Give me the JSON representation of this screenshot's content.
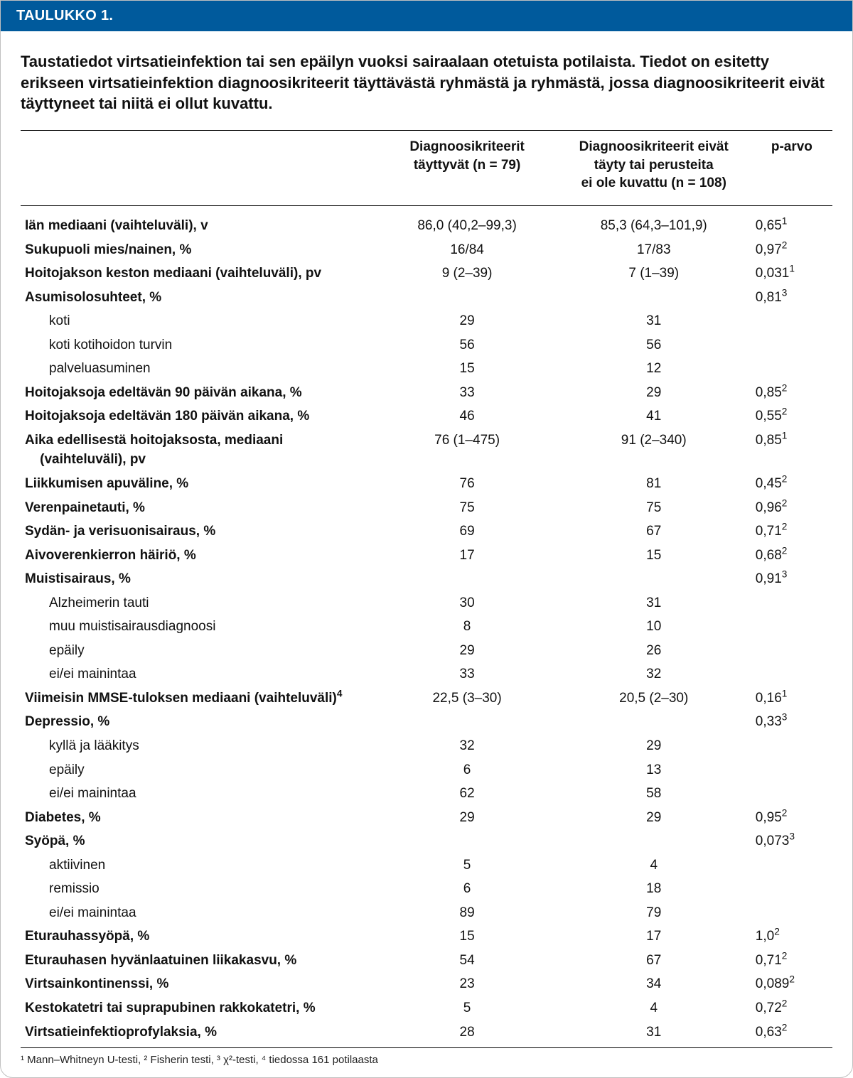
{
  "table": {
    "header_label": "TAULUKKO 1.",
    "caption": "Taustatiedot virtsatieinfektion tai sen epäilyn vuoksi sairaalaan otetuista potilaista. Tiedot on esitetty erikseen virtsatieinfektion diagnoosikriteerit täyttävästä ryhmästä ja ryhmästä, jossa diagnoosikriteerit eivät täyttyneet tai niitä ei ollut kuvattu.",
    "columns": {
      "label": "",
      "col1_l1": "Diagnoosikriteerit",
      "col1_l2": "täyttyvät (n = 79)",
      "col2_l1": "Diagnoosikriteerit eivät",
      "col2_l2": "täyty tai perusteita",
      "col2_l3": "ei ole kuvattu (n = 108)",
      "col3": "p-arvo"
    },
    "rows": [
      {
        "label": "Iän mediaani (vaihteluväli), v",
        "v1": "86,0 (40,2–99,3)",
        "v2": "85,3 (64,3–101,9)",
        "p": "0,65",
        "sup": "1",
        "bold": true
      },
      {
        "label": "Sukupuoli mies/nainen, %",
        "v1": "16/84",
        "v2": "17/83",
        "p": "0,97",
        "sup": "2",
        "bold": true
      },
      {
        "label": "Hoitojakson keston mediaani (vaihteluväli), pv",
        "v1": "9 (2–39)",
        "v2": "7 (1–39)",
        "p": "0,031",
        "sup": "1",
        "bold": true
      },
      {
        "label": "Asumisolosuhteet, %",
        "v1": "",
        "v2": "",
        "p": "0,81",
        "sup": "3",
        "bold": true
      },
      {
        "label": "koti",
        "v1": "29",
        "v2": "31",
        "p": "",
        "sup": "",
        "sub": true
      },
      {
        "label": "koti kotihoidon turvin",
        "v1": "56",
        "v2": "56",
        "p": "",
        "sup": "",
        "sub": true
      },
      {
        "label": "palveluasuminen",
        "v1": "15",
        "v2": "12",
        "p": "",
        "sup": "",
        "sub": true
      },
      {
        "label": "Hoitojaksoja edeltävän 90 päivän aikana, %",
        "v1": "33",
        "v2": "29",
        "p": "0,85",
        "sup": "2",
        "bold": true
      },
      {
        "label": "Hoitojaksoja edeltävän 180 päivän aikana, %",
        "v1": "46",
        "v2": "41",
        "p": "0,55",
        "sup": "2",
        "bold": true
      },
      {
        "label": "Aika edellisestä hoitojaksosta, mediaani",
        "label2": "(vaihteluväli), pv",
        "v1": "76 (1–475)",
        "v2": "91 (2–340)",
        "p": "0,85",
        "sup": "1",
        "bold": true,
        "two_line": true
      },
      {
        "label": "Liikkumisen apuväline, %",
        "v1": "76",
        "v2": "81",
        "p": "0,45",
        "sup": "2",
        "bold": true
      },
      {
        "label": "Verenpainetauti, %",
        "v1": "75",
        "v2": "75",
        "p": "0,96",
        "sup": "2",
        "bold": true
      },
      {
        "label": "Sydän- ja verisuonisairaus, %",
        "v1": "69",
        "v2": "67",
        "p": "0,71",
        "sup": "2",
        "bold": true
      },
      {
        "label": "Aivoverenkierron häiriö, %",
        "v1": "17",
        "v2": "15",
        "p": "0,68",
        "sup": "2",
        "bold": true
      },
      {
        "label": "Muistisairaus, %",
        "v1": "",
        "v2": "",
        "p": "0,91",
        "sup": "3",
        "bold": true
      },
      {
        "label": "Alzheimerin tauti",
        "v1": "30",
        "v2": "31",
        "p": "",
        "sup": "",
        "sub": true
      },
      {
        "label": "muu muistisairausdiagnoosi",
        "v1": "8",
        "v2": "10",
        "p": "",
        "sup": "",
        "sub": true
      },
      {
        "label": "epäily",
        "v1": "29",
        "v2": "26",
        "p": "",
        "sup": "",
        "sub": true
      },
      {
        "label": "ei/ei mainintaa",
        "v1": "33",
        "v2": "32",
        "p": "",
        "sup": "",
        "sub": true
      },
      {
        "label": "Viimeisin MMSE-tuloksen mediaani (vaihteluväli)",
        "label_sup": "4",
        "v1": "22,5 (3–30)",
        "v2": "20,5 (2–30)",
        "p": "0,16",
        "sup": "1",
        "bold": true
      },
      {
        "label": "Depressio, %",
        "v1": "",
        "v2": "",
        "p": "0,33",
        "sup": "3",
        "bold": true
      },
      {
        "label": "kyllä ja lääkitys",
        "v1": "32",
        "v2": "29",
        "p": "",
        "sup": "",
        "sub": true
      },
      {
        "label": "epäily",
        "v1": "6",
        "v2": "13",
        "p": "",
        "sup": "",
        "sub": true
      },
      {
        "label": "ei/ei mainintaa",
        "v1": "62",
        "v2": "58",
        "p": "",
        "sup": "",
        "sub": true
      },
      {
        "label": "Diabetes, %",
        "v1": "29",
        "v2": "29",
        "p": "0,95",
        "sup": "2",
        "bold": true
      },
      {
        "label": "Syöpä, %",
        "v1": "",
        "v2": "",
        "p": "0,073",
        "sup": "3",
        "bold": true
      },
      {
        "label": "aktiivinen",
        "v1": "5",
        "v2": "4",
        "p": "",
        "sup": "",
        "sub": true
      },
      {
        "label": "remissio",
        "v1": "6",
        "v2": "18",
        "p": "",
        "sup": "",
        "sub": true
      },
      {
        "label": "ei/ei mainintaa",
        "v1": "89",
        "v2": "79",
        "p": "",
        "sup": "",
        "sub": true
      },
      {
        "label": "Eturauhassyöpä, %",
        "v1": "15",
        "v2": "17",
        "p": "1,0",
        "sup": "2",
        "bold": true
      },
      {
        "label": "Eturauhasen hyvänlaatuinen liikakasvu, %",
        "v1": "54",
        "v2": "67",
        "p": "0,71",
        "sup": "2",
        "bold": true
      },
      {
        "label": "Virtsainkontinenssi, %",
        "v1": "23",
        "v2": "34",
        "p": "0,089",
        "sup": "2",
        "bold": true
      },
      {
        "label": "Kestokatetri tai suprapubinen rakkokatetri, %",
        "v1": "5",
        "v2": "4",
        "p": "0,72",
        "sup": "2",
        "bold": true
      },
      {
        "label": "Virtsatieinfektioprofylaksia, %",
        "v1": "28",
        "v2": "31",
        "p": "0,63",
        "sup": "2",
        "bold": true
      }
    ],
    "footnotes": "¹ Mann–Whitneyn U-testi, ² Fisherin testi, ³ χ²-testi, ⁴ tiedossa 161 potilaasta",
    "colors": {
      "header_bg": "#005a9c",
      "header_text": "#ffffff",
      "text": "#111111",
      "rule": "#000000",
      "card_border": "#c0c0c0",
      "background": "#ffffff"
    },
    "col_widths_pct": [
      44,
      22,
      24,
      10
    ],
    "font_sizes_pt": {
      "header": 15,
      "caption": 16.5,
      "body": 14,
      "footnotes": 11
    }
  }
}
